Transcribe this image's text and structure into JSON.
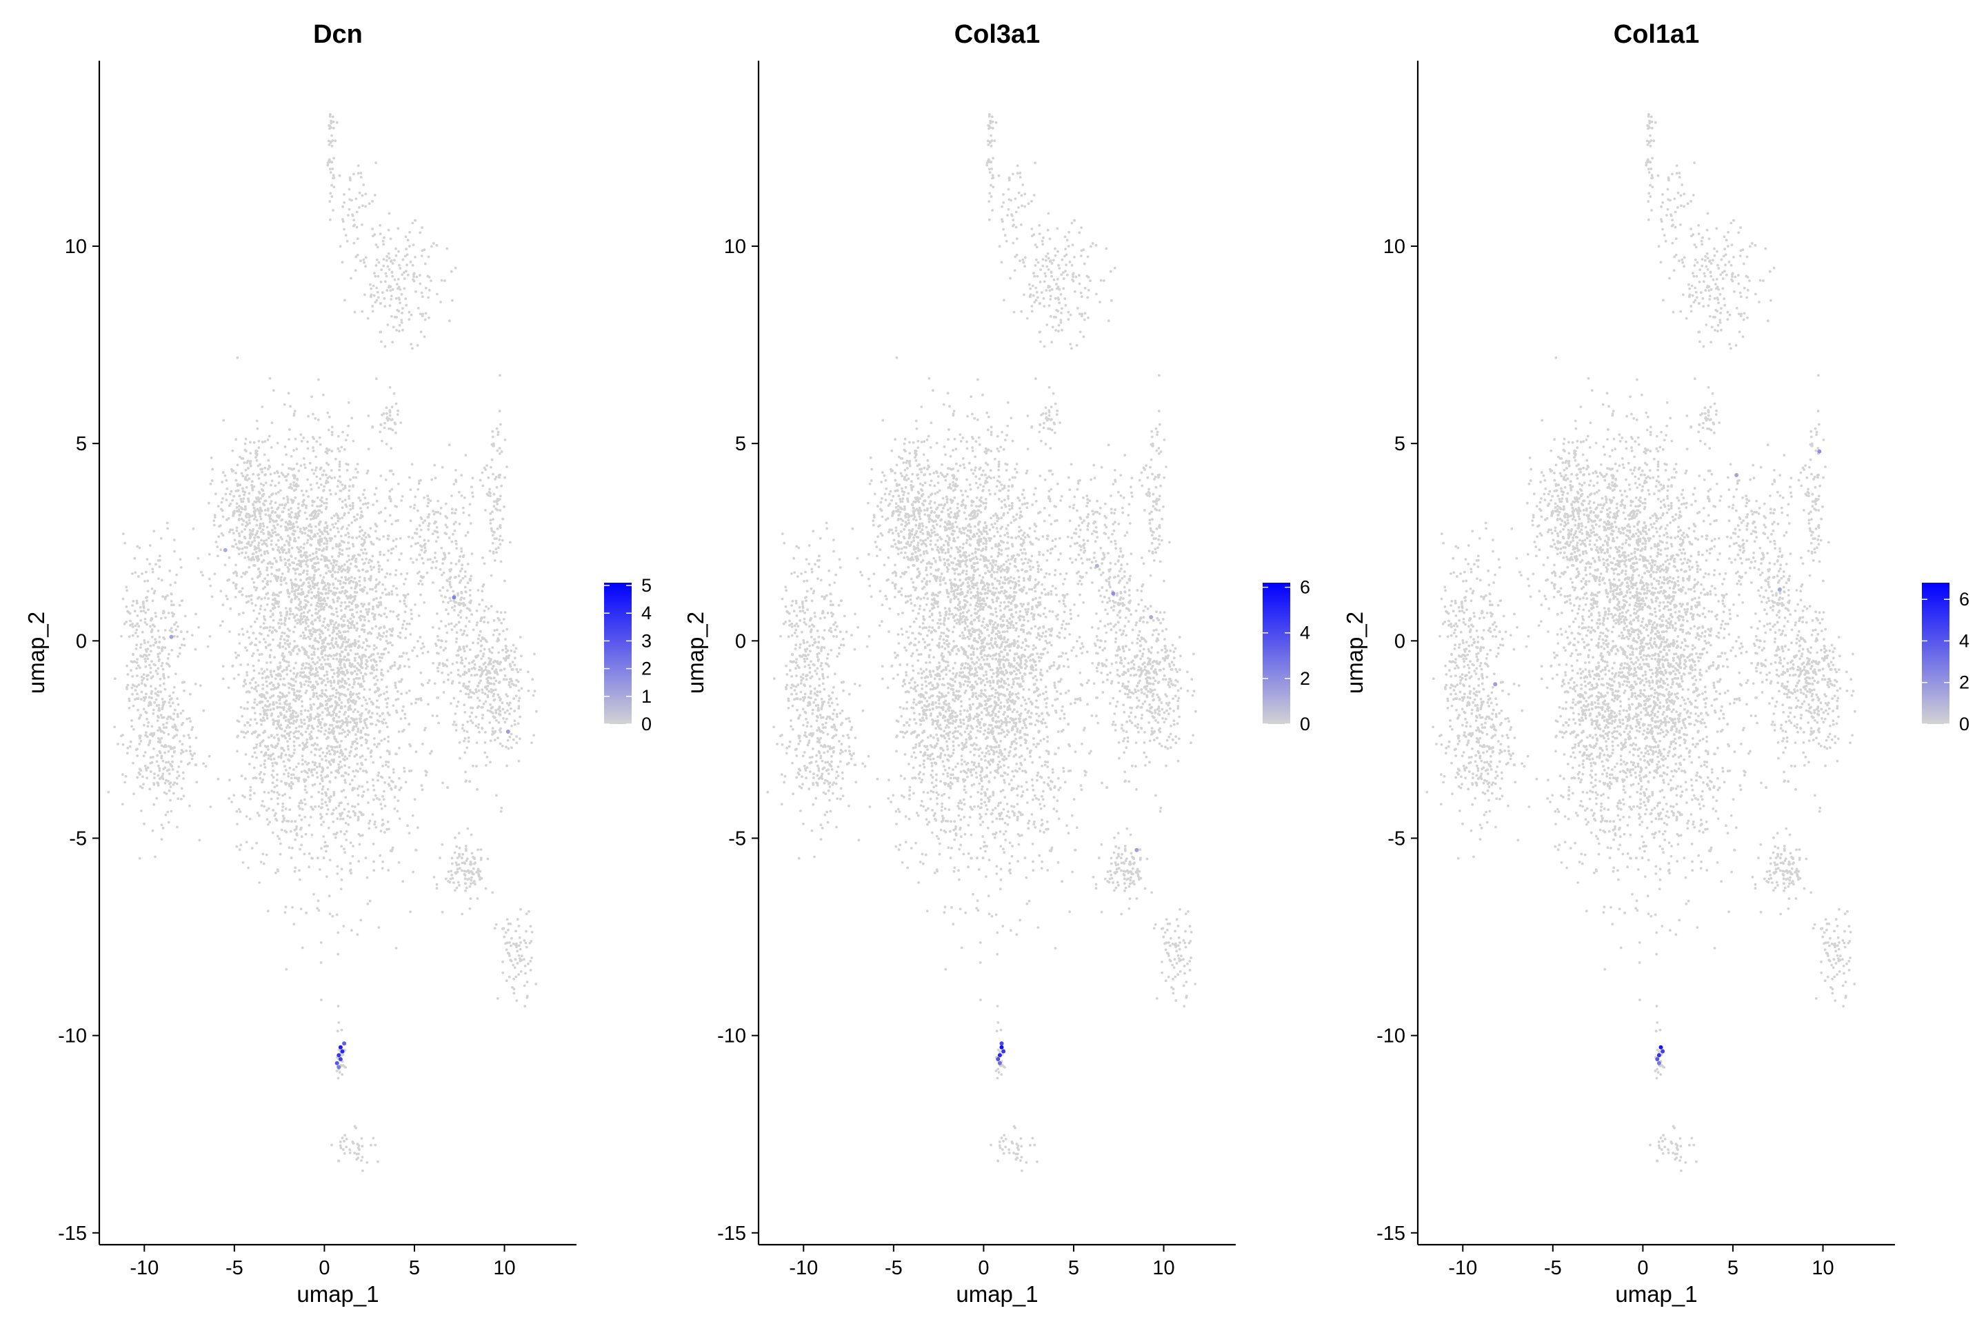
{
  "chart_data": [
    {
      "type": "scatter",
      "title": "Dcn",
      "xlabel": "umap_1",
      "ylabel": "umap_2",
      "xlim": [
        -12.5,
        14
      ],
      "ylim": [
        -15.3,
        14.7
      ],
      "x_ticks": [
        -10,
        -5,
        0,
        5,
        10
      ],
      "y_ticks": [
        10,
        5,
        0,
        -5,
        -10,
        -15
      ],
      "grid": false,
      "legend_position": "right",
      "color_low": "#d3d3d3",
      "color_high": "#0000ff",
      "colorbar_ticks": [
        5,
        4,
        3,
        2,
        1,
        0
      ],
      "colorbar_max": 5.1,
      "expressing_cells": [
        {
          "x": 0.9,
          "y": -10.3,
          "value": 4.5
        },
        {
          "x": 0.8,
          "y": -10.5,
          "value": 3.8
        },
        {
          "x": 1.0,
          "y": -10.4,
          "value": 4.2
        },
        {
          "x": 0.7,
          "y": -10.7,
          "value": 3.0
        },
        {
          "x": 0.9,
          "y": -10.6,
          "value": 3.6
        },
        {
          "x": 1.1,
          "y": -10.2,
          "value": 2.8
        },
        {
          "x": 0.8,
          "y": -10.8,
          "value": 2.2
        },
        {
          "x": 7.2,
          "y": 1.1,
          "value": 2.0
        },
        {
          "x": 10.2,
          "y": -2.3,
          "value": 1.4
        },
        {
          "x": -8.5,
          "y": 0.1,
          "value": 1.2
        },
        {
          "x": -5.5,
          "y": 2.3,
          "value": 1.0
        }
      ]
    },
    {
      "type": "scatter",
      "title": "Col3a1",
      "xlabel": "umap_1",
      "ylabel": "umap_2",
      "xlim": [
        -12.5,
        14
      ],
      "ylim": [
        -15.3,
        14.7
      ],
      "x_ticks": [
        -10,
        -5,
        0,
        5,
        10
      ],
      "y_ticks": [
        10,
        5,
        0,
        -5,
        -10,
        -15
      ],
      "grid": false,
      "legend_position": "right",
      "color_low": "#d3d3d3",
      "color_high": "#0000ff",
      "colorbar_ticks": [
        6,
        4,
        2,
        0
      ],
      "colorbar_max": 6.2,
      "expressing_cells": [
        {
          "x": 1.0,
          "y": -10.3,
          "value": 5.8
        },
        {
          "x": 0.9,
          "y": -10.5,
          "value": 5.0
        },
        {
          "x": 1.1,
          "y": -10.4,
          "value": 4.6
        },
        {
          "x": 0.8,
          "y": -10.6,
          "value": 3.9
        },
        {
          "x": 1.0,
          "y": -10.2,
          "value": 4.2
        },
        {
          "x": 0.9,
          "y": -10.7,
          "value": 3.0
        },
        {
          "x": 7.2,
          "y": 1.2,
          "value": 2.0
        },
        {
          "x": 9.3,
          "y": 0.6,
          "value": 1.2
        },
        {
          "x": 8.5,
          "y": -5.3,
          "value": 1.6
        },
        {
          "x": 6.3,
          "y": 1.9,
          "value": 1.0
        }
      ]
    },
    {
      "type": "scatter",
      "title": "Col1a1",
      "xlabel": "umap_1",
      "ylabel": "umap_2",
      "xlim": [
        -12.5,
        14
      ],
      "ylim": [
        -15.3,
        14.7
      ],
      "x_ticks": [
        -10,
        -5,
        0,
        5,
        10
      ],
      "y_ticks": [
        10,
        5,
        0,
        -5,
        -10,
        -15
      ],
      "grid": false,
      "legend_position": "right",
      "color_low": "#d3d3d3",
      "color_high": "#0000ff",
      "colorbar_ticks": [
        6,
        4,
        2,
        0
      ],
      "colorbar_max": 6.8,
      "expressing_cells": [
        {
          "x": 1.0,
          "y": -10.3,
          "value": 6.2
        },
        {
          "x": 0.9,
          "y": -10.5,
          "value": 5.2
        },
        {
          "x": 1.1,
          "y": -10.4,
          "value": 4.8
        },
        {
          "x": 0.8,
          "y": -10.6,
          "value": 4.0
        },
        {
          "x": 0.9,
          "y": -10.7,
          "value": 3.0
        },
        {
          "x": 9.8,
          "y": 4.8,
          "value": 2.2
        },
        {
          "x": 5.2,
          "y": 4.2,
          "value": 1.5
        },
        {
          "x": 7.6,
          "y": 1.3,
          "value": 1.4
        },
        {
          "x": -8.2,
          "y": -1.1,
          "value": 1.8
        }
      ]
    }
  ]
}
